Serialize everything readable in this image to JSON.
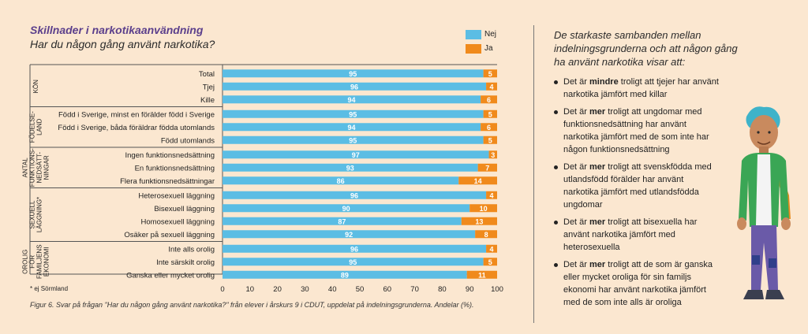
{
  "title": "Skillnader i narkotikaanvändning",
  "subtitle": "Har du någon gång använt narkotika?",
  "footnote": "* ej Sörmland",
  "caption": "Figur 6. Svar på frågan \"Har du någon gång använt narkotika?\" från elever i årskurs 9 i CDUT, uppdelat på indelningsgrunderna. Andelar (%).",
  "colors": {
    "nej": "#5bbde4",
    "ja": "#f08a1c",
    "title": "#5b3f8c"
  },
  "chart_data": {
    "type": "bar",
    "orientation": "horizontal",
    "stacked": true,
    "xlim": [
      0,
      100
    ],
    "xticks": [
      0,
      10,
      20,
      30,
      40,
      50,
      60,
      70,
      80,
      90,
      100
    ],
    "legend": [
      "Nej",
      "Ja"
    ],
    "legend_position": "top-right",
    "groups": [
      {
        "label": "KÖN",
        "categories": [
          "Total",
          "Tjej",
          "Kille"
        ]
      },
      {
        "label": "FÖDELSE-LAND",
        "categories": [
          "Född i Sverige, minst en förälder född i Sverige",
          "Född i Sverige, båda föräldrar födda utomlands",
          "Född utomlands"
        ]
      },
      {
        "label": "ANTAL FUNKTIONS-NEDSÄTT-NINGAR",
        "categories": [
          "Ingen funktionsnedsättning",
          "En funktionsnedsättning",
          "Flera funktionsnedsättningar"
        ]
      },
      {
        "label": "SEXUELL LÄGGNING*",
        "categories": [
          "Heterosexuell läggning",
          "Bisexuell läggning",
          "Homosexuell läggning",
          "Osäker på sexuell läggning"
        ]
      },
      {
        "label": "OROLIG FÖR FAMILJENS EKONOMI",
        "categories": [
          "Inte alls orolig",
          "Inte särskilt orolig",
          "Ganska eller mycket orolig"
        ]
      }
    ],
    "series": [
      {
        "name": "Nej",
        "values": [
          95,
          96,
          94,
          95,
          94,
          95,
          97,
          93,
          86,
          96,
          90,
          87,
          92,
          96,
          95,
          89
        ]
      },
      {
        "name": "Ja",
        "values": [
          5,
          4,
          6,
          5,
          6,
          5,
          3,
          7,
          14,
          4,
          10,
          13,
          8,
          4,
          5,
          11
        ]
      }
    ]
  },
  "sidebar": {
    "intro": "De starkaste sambanden mellan indelningsgrunderna och att någon gång ha använt narkotika visar att:",
    "bullets": [
      {
        "pre": "Det är ",
        "emph": "mindre",
        "post": " troligt att tjejer har använt narkotika jämfört med killar"
      },
      {
        "pre": "Det är ",
        "emph": "mer",
        "post": " troligt att ungdomar med funktionsnedsättning har använt narkotika jämfört med de som inte har någon funktionsnedsättning"
      },
      {
        "pre": "Det är ",
        "emph": "mer",
        "post": " troligt att svenskfödda med utlandsfödd förälder har använt narkotika jämfört med utlandsfödda ungdomar"
      },
      {
        "pre": "Det är ",
        "emph": "mer",
        "post": " troligt att bisexuella har använt narkotika jämfört med heterosexuella"
      },
      {
        "pre": "Det är ",
        "emph": "mer",
        "post": " troligt att de som är ganska eller mycket oroliga för sin familjs ekonomi har använt narkotika jämfört med de som inte alls är oroliga"
      }
    ]
  }
}
